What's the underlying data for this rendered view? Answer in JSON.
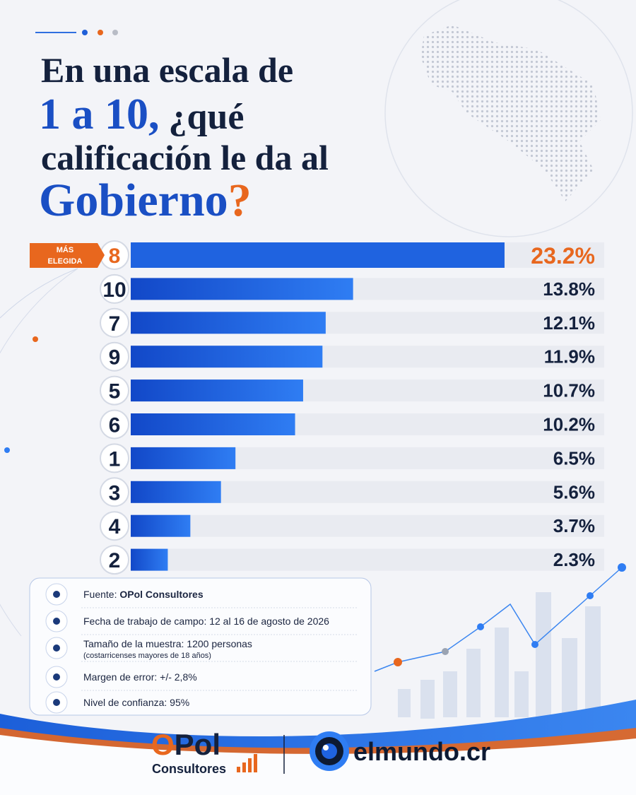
{
  "chart_data": {
    "type": "bar",
    "orientation": "horizontal",
    "title": [
      "En una escala  de",
      "1 a 10,",
      " ¿qué",
      "calificación le da al",
      "Gobierno",
      "?"
    ],
    "badge": [
      "MÁS",
      "ELEGIDA"
    ],
    "categories": [
      "8",
      "10",
      "7",
      "9",
      "5",
      "6",
      "1",
      "3",
      "4",
      "2"
    ],
    "values": [
      23.2,
      13.8,
      12.1,
      11.9,
      10.7,
      10.2,
      6.5,
      5.6,
      3.7,
      2.3
    ],
    "value_labels": [
      "23.2%",
      "13.8%",
      "12.1%",
      "11.9%",
      "10.7%",
      "10.2%",
      "6.5%",
      "5.6%",
      "3.7%",
      "2.3%"
    ],
    "color": "#1f63e0",
    "highlight_color": "#e8671e"
  },
  "info": [
    {
      "label": "Fuente:",
      "value": "OPol Consultores"
    },
    {
      "label": "Fecha de trabajo de campo: 12 al 16 de agosto de 2026"
    },
    {
      "label": "Tamaño de la muestra: 1200 personas",
      "note": "(costarricenses mayores de 18 años)"
    },
    {
      "label": "Margen de error: +/- 2,8%"
    },
    {
      "label": "Nivel de confianza: 95%"
    }
  ],
  "logos": {
    "opol_o": "O",
    "opol_rest": "Pol",
    "opol_sub": "Consultores",
    "elmundo": "elmundo.cr"
  }
}
